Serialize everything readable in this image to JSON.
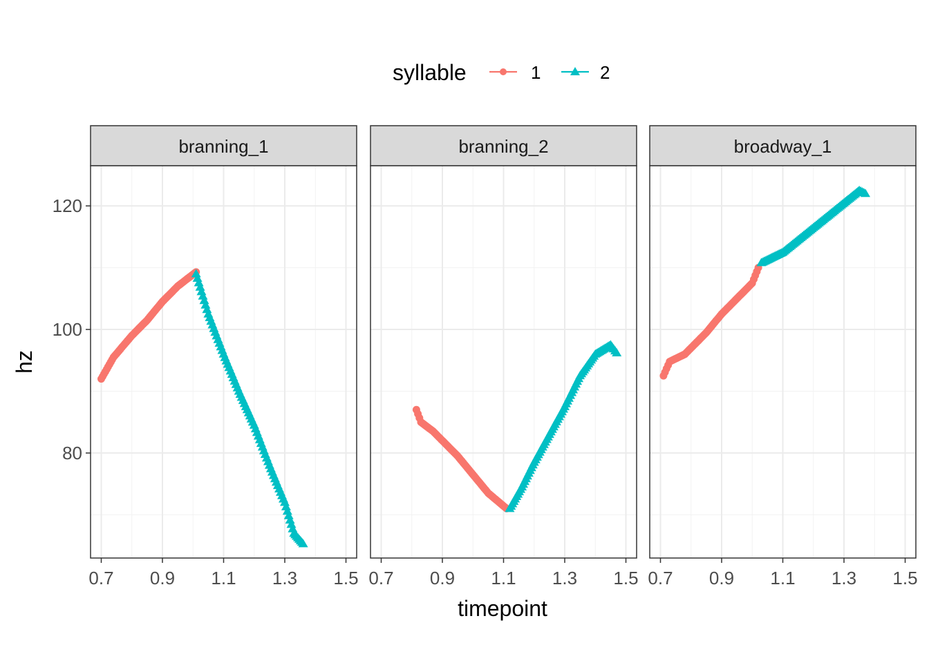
{
  "chart_data": {
    "type": "scatter",
    "xlabel": "timepoint",
    "ylabel": "hz",
    "xlim": [
      0.665,
      1.535
    ],
    "ylim": [
      63.0,
      126.5
    ],
    "x_ticks": [
      0.7,
      0.9,
      1.1,
      1.3,
      1.5
    ],
    "x_tick_labels": [
      "0.7",
      "0.9",
      "1.1",
      "1.3",
      "1.5"
    ],
    "y_ticks": [
      80,
      100,
      120
    ],
    "y_tick_labels": [
      "80",
      "100",
      "120"
    ],
    "grid": true,
    "legend": {
      "title": "syllable",
      "position": "top",
      "entries": [
        {
          "label": "1",
          "color": "#F8766D",
          "marker": "circle"
        },
        {
          "label": "2",
          "color": "#00BFC4",
          "marker": "triangle"
        }
      ]
    },
    "panels": [
      {
        "label": "branning_1",
        "series": [
          {
            "name": "1",
            "segments": [
              [
                0.7,
                92.0
              ],
              [
                0.74,
                95.5
              ],
              [
                0.8,
                99.0
              ],
              [
                0.85,
                101.5
              ],
              [
                0.9,
                104.5
              ],
              [
                0.95,
                107.0
              ],
              [
                1.01,
                109.3
              ]
            ]
          },
          {
            "name": "2",
            "segments": [
              [
                1.01,
                109.0
              ],
              [
                1.05,
                102.5
              ],
              [
                1.1,
                96.0
              ],
              [
                1.15,
                90.0
              ],
              [
                1.2,
                84.5
              ],
              [
                1.25,
                78.0
              ],
              [
                1.3,
                72.0
              ],
              [
                1.33,
                67.0
              ],
              [
                1.36,
                65.3
              ]
            ]
          }
        ]
      },
      {
        "label": "branning_2",
        "series": [
          {
            "name": "1",
            "segments": [
              [
                0.815,
                87.0
              ],
              [
                0.83,
                85.0
              ],
              [
                0.87,
                83.5
              ],
              [
                0.95,
                79.5
              ],
              [
                1.0,
                76.5
              ],
              [
                1.05,
                73.5
              ],
              [
                1.11,
                71.0
              ]
            ]
          },
          {
            "name": "2",
            "segments": [
              [
                1.12,
                71.0
              ],
              [
                1.16,
                74.5
              ],
              [
                1.2,
                78.5
              ],
              [
                1.25,
                83.0
              ],
              [
                1.3,
                87.5
              ],
              [
                1.35,
                92.5
              ],
              [
                1.4,
                96.0
              ],
              [
                1.45,
                97.5
              ],
              [
                1.47,
                96.2
              ]
            ]
          }
        ]
      },
      {
        "label": "broadway_1",
        "series": [
          {
            "name": "1",
            "segments": [
              [
                0.71,
                92.5
              ],
              [
                0.73,
                94.8
              ],
              [
                0.78,
                96.0
              ],
              [
                0.85,
                99.5
              ],
              [
                0.9,
                102.5
              ],
              [
                0.95,
                105.0
              ],
              [
                1.0,
                107.5
              ],
              [
                1.02,
                110.0
              ]
            ]
          },
          {
            "name": "2",
            "segments": [
              [
                1.03,
                110.8
              ],
              [
                1.1,
                112.5
              ],
              [
                1.15,
                114.5
              ],
              [
                1.2,
                116.5
              ],
              [
                1.25,
                118.5
              ],
              [
                1.3,
                120.5
              ],
              [
                1.35,
                122.5
              ],
              [
                1.37,
                122.0
              ]
            ]
          }
        ]
      }
    ]
  }
}
